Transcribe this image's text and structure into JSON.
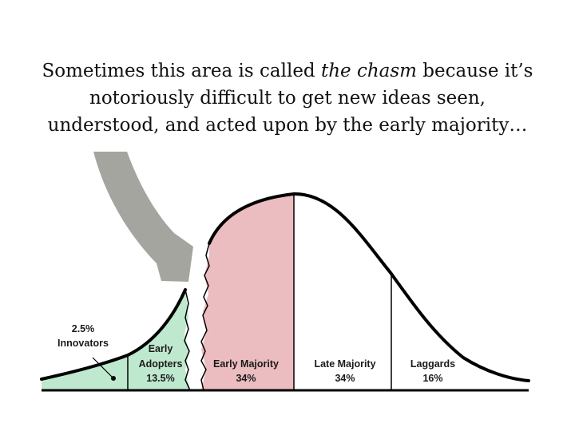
{
  "caption": {
    "line1_pre": "Sometimes this area is called ",
    "line1_em": "the chasm",
    "line1_post": " because it’s",
    "line2": "notoriously difficult to get new ideas seen,",
    "line3": "understood, and acted upon by the early majority…"
  },
  "segments": [
    {
      "name": "Innovators",
      "label": "Innovators",
      "pct": "2.5%",
      "color": "#bfe9cf"
    },
    {
      "name": "Early Adopters",
      "label_line1": "Early",
      "label_line2": "Adopters",
      "pct": "13.5%",
      "color": "#bfe9cf"
    },
    {
      "name": "Early Majority",
      "label": "Early Majority",
      "pct": "34%",
      "color": "#ebbcc0"
    },
    {
      "name": "Late Majority",
      "label": "Late Majority",
      "pct": "34%",
      "color": "#ffffff"
    },
    {
      "name": "Laggards",
      "label": "Laggards",
      "pct": "16%",
      "color": "#ffffff"
    }
  ],
  "colors": {
    "arrow": "#a5a5a0",
    "curve": "#000000"
  },
  "icons": {
    "pointer": "big-arrow-icon"
  }
}
